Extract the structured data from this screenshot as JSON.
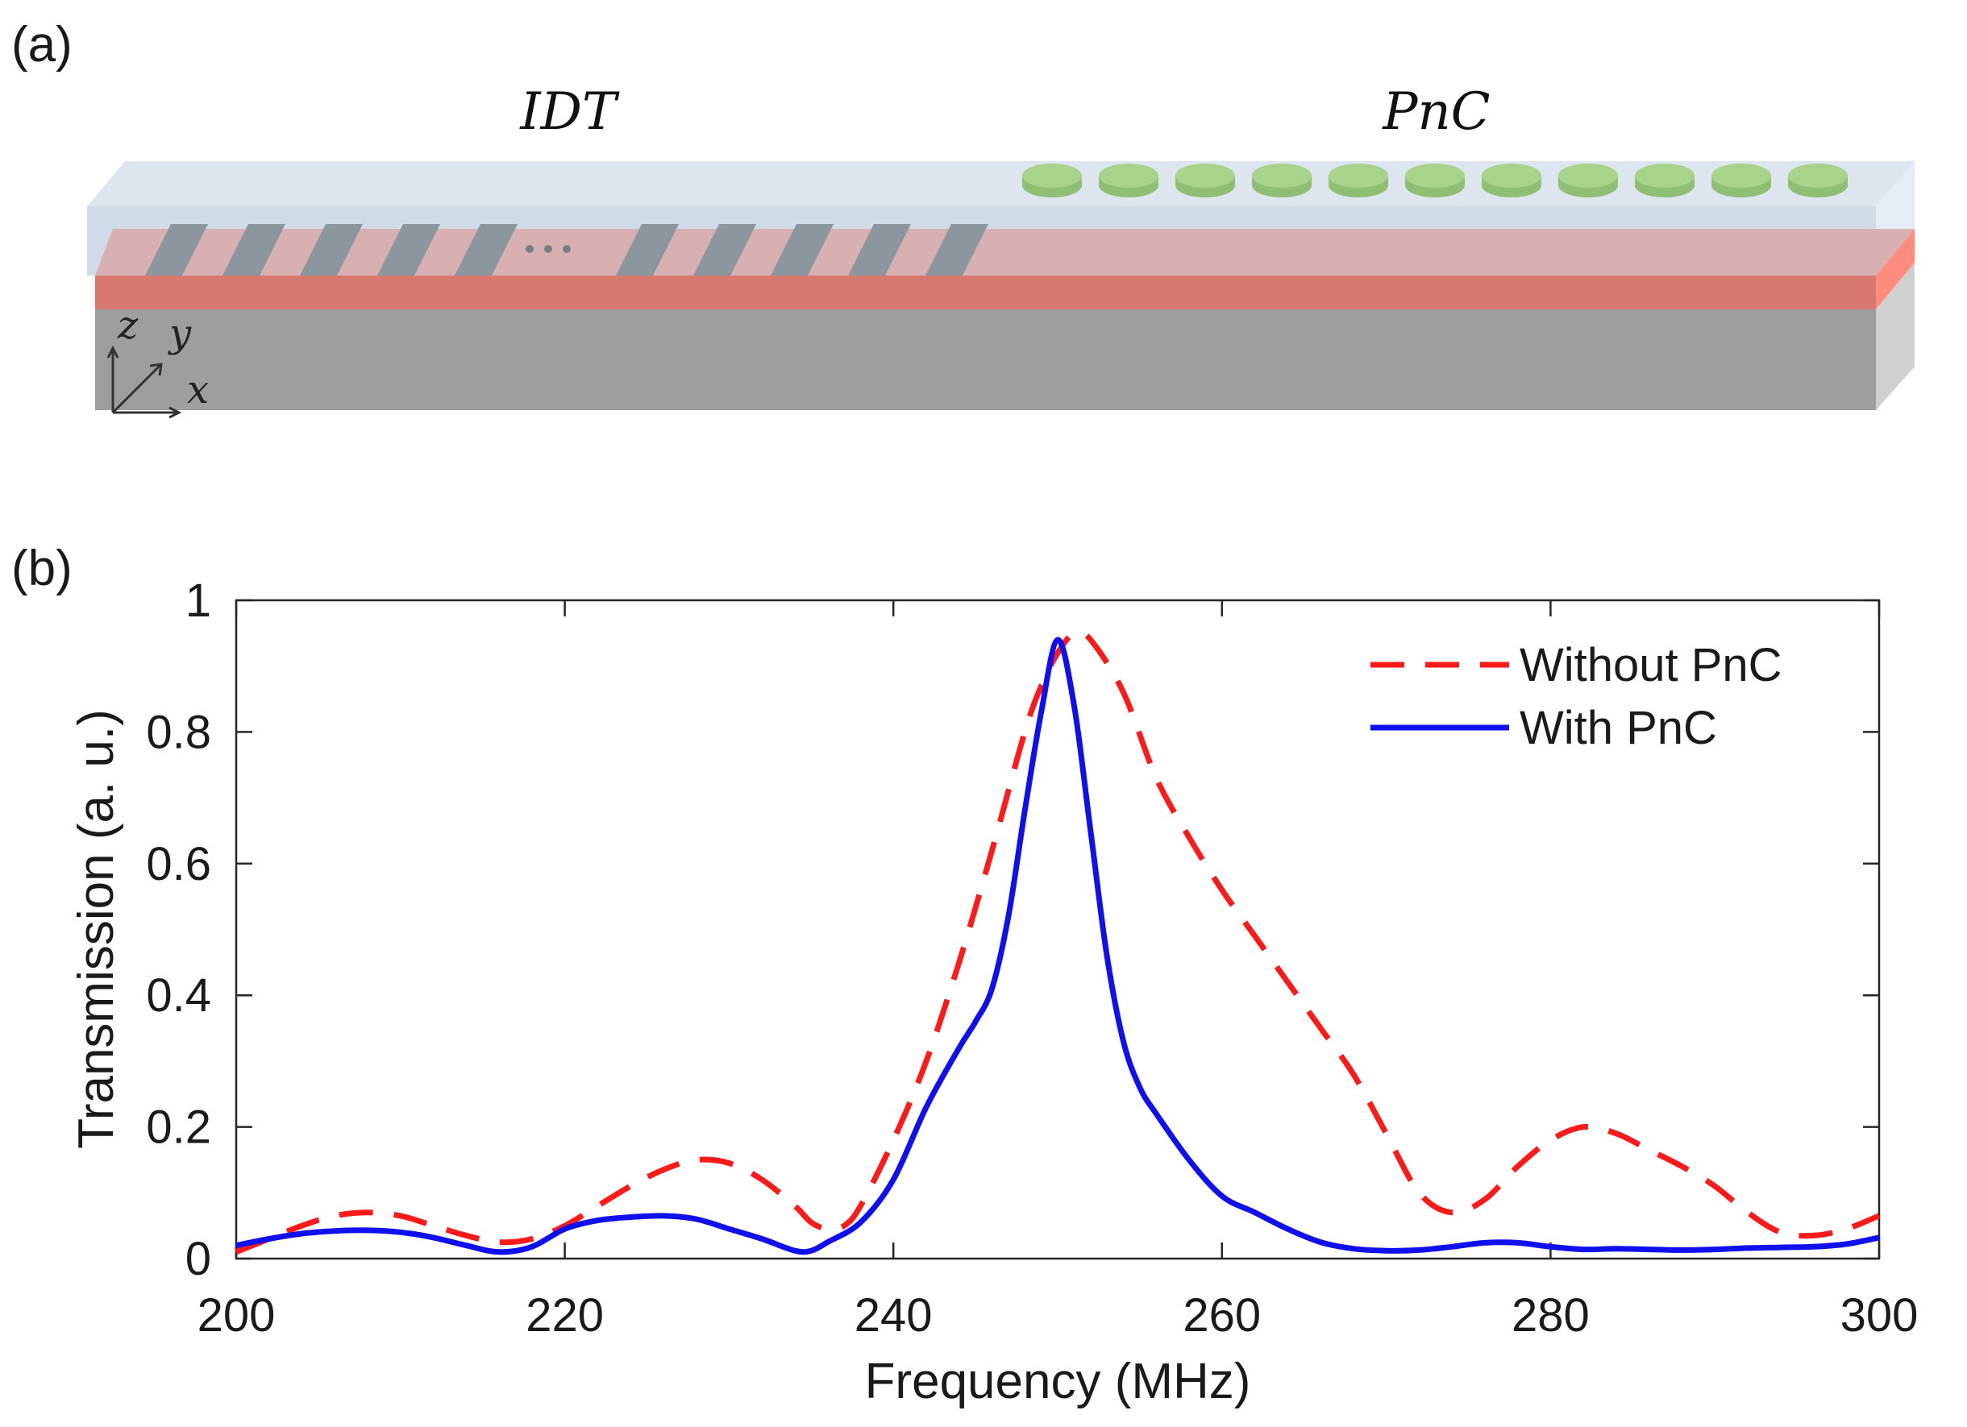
{
  "panel_a": {
    "label": "(a)",
    "idt_label": "IDT",
    "pnc_label": "PnC",
    "ellipsis": "•••",
    "axes": {
      "z": "z",
      "y": "y",
      "x": "x"
    },
    "colors": {
      "top_layer": "#cfdbe6",
      "piezo_layer": "#e57f74",
      "substrate": "#9e9e9e",
      "electrode": "#8c969e",
      "pillar": "#a7d38b"
    },
    "electrode_count": 10,
    "pillar_count": 11
  },
  "panel_b": {
    "label": "(b)"
  },
  "chart_data": {
    "type": "line",
    "xlabel": "Frequency (MHz)",
    "ylabel": "Transmission (a. u.)",
    "xlim": [
      200,
      300
    ],
    "ylim": [
      0,
      1
    ],
    "xticks": [
      200,
      220,
      240,
      260,
      280,
      300
    ],
    "yticks": [
      0,
      0.2,
      0.4,
      0.6,
      0.8,
      1
    ],
    "ytick_labels": [
      "0",
      "0.2",
      "0.4",
      "0.6",
      "0.8",
      "1"
    ],
    "legend_position": "top-right",
    "grid": false,
    "series": [
      {
        "name": "Without PnC",
        "color": "#ff1a1a",
        "style": "dashed",
        "x": [
          200,
          202,
          204,
          206,
          208,
          210,
          212,
          214,
          216,
          218,
          220,
          222,
          224,
          226,
          228,
          230,
          232,
          234,
          235,
          236,
          237,
          238,
          240,
          242,
          244,
          246,
          248,
          249,
          250,
          251,
          252,
          254,
          256,
          258,
          260,
          262,
          264,
          266,
          268,
          270,
          272,
          274,
          276,
          278,
          280,
          282,
          284,
          286,
          288,
          290,
          292,
          294,
          296,
          298,
          300
        ],
        "y": [
          0.01,
          0.03,
          0.05,
          0.065,
          0.07,
          0.065,
          0.05,
          0.035,
          0.025,
          0.03,
          0.05,
          0.08,
          0.11,
          0.135,
          0.15,
          0.145,
          0.12,
          0.08,
          0.055,
          0.045,
          0.05,
          0.08,
          0.18,
          0.3,
          0.45,
          0.62,
          0.8,
          0.87,
          0.92,
          0.95,
          0.94,
          0.86,
          0.73,
          0.64,
          0.56,
          0.49,
          0.42,
          0.35,
          0.28,
          0.19,
          0.1,
          0.07,
          0.09,
          0.14,
          0.18,
          0.2,
          0.19,
          0.165,
          0.14,
          0.11,
          0.07,
          0.04,
          0.035,
          0.045,
          0.065
        ]
      },
      {
        "name": "With PnC",
        "color": "#1010ee",
        "style": "solid",
        "x": [
          200,
          202,
          204,
          206,
          208,
          210,
          212,
          214,
          216,
          218,
          220,
          222,
          224,
          226,
          228,
          230,
          232,
          234,
          235,
          236,
          238,
          240,
          242,
          244,
          245,
          246,
          247,
          248,
          249,
          250,
          251,
          252,
          253,
          254,
          255,
          256,
          258,
          260,
          262,
          264,
          266,
          268,
          270,
          272,
          274,
          276,
          278,
          280,
          282,
          284,
          286,
          288,
          290,
          292,
          294,
          296,
          298,
          300
        ],
        "y": [
          0.02,
          0.03,
          0.038,
          0.042,
          0.043,
          0.04,
          0.032,
          0.02,
          0.01,
          0.018,
          0.045,
          0.058,
          0.063,
          0.065,
          0.06,
          0.045,
          0.03,
          0.012,
          0.012,
          0.025,
          0.055,
          0.12,
          0.23,
          0.32,
          0.36,
          0.41,
          0.52,
          0.68,
          0.83,
          0.94,
          0.84,
          0.65,
          0.46,
          0.33,
          0.26,
          0.22,
          0.15,
          0.095,
          0.07,
          0.045,
          0.025,
          0.015,
          0.012,
          0.013,
          0.018,
          0.024,
          0.024,
          0.018,
          0.014,
          0.015,
          0.014,
          0.013,
          0.014,
          0.016,
          0.017,
          0.018,
          0.022,
          0.032
        ]
      }
    ]
  }
}
